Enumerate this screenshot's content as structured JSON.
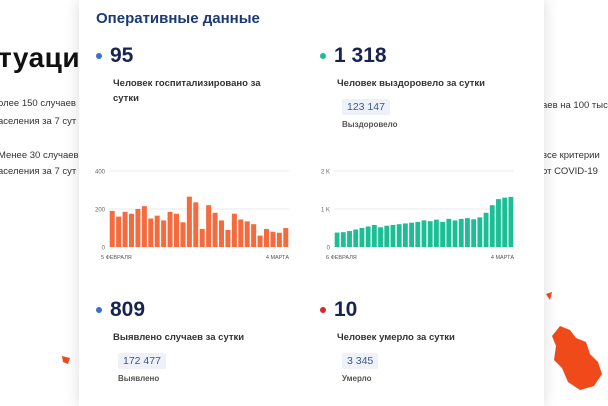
{
  "background": {
    "heading": "туаци",
    "left_lines": [
      "олее 150 случаев",
      "аселения за 7 сут",
      "Менее 30 случаев",
      "аселения за 7 сут"
    ],
    "right_lines": [
      "аев на 100 тыс.",
      "",
      "все критерии",
      "от COVID-19"
    ]
  },
  "card": {
    "title": "Оперативные данные",
    "hospitalized": {
      "value": "95",
      "label": "Человек госпитализировано за сутки",
      "color": "#3b6fd8"
    },
    "recovered": {
      "value": "1 318",
      "label": "Человек выздоровело за сутки",
      "total": "123 147",
      "total_caption": "Выздоровело",
      "color": "#1cbf95"
    },
    "detected": {
      "value": "809",
      "label": "Выявлено случаев за сутки",
      "total": "172 477",
      "total_caption": "Выявлено",
      "color": "#3b6fd8"
    },
    "deaths": {
      "value": "10",
      "label": "Человек умерло за сутки",
      "total": "3 345",
      "total_caption": "Умерло",
      "color": "#d8262e"
    }
  },
  "chart_data": [
    {
      "type": "bar",
      "series_color": "#f56b3d",
      "y_ticks": [
        "400",
        "200",
        "0"
      ],
      "ylim": [
        0,
        400
      ],
      "x_start_label": "5 ФЕВРАЛЯ",
      "x_end_label": "4 МАРТА",
      "values": [
        190,
        160,
        185,
        175,
        200,
        215,
        150,
        165,
        140,
        185,
        175,
        130,
        265,
        235,
        95,
        220,
        180,
        140,
        90,
        175,
        145,
        135,
        120,
        60,
        95,
        80,
        75,
        100
      ]
    },
    {
      "type": "bar",
      "series_color": "#1cbf95",
      "y_ticks": [
        "2 K",
        "1 K",
        "0"
      ],
      "ylim": [
        0,
        2000
      ],
      "x_start_label": "6 ФЕВРАЛЯ",
      "x_end_label": "4 МАРТА",
      "values": [
        380,
        390,
        420,
        460,
        500,
        540,
        580,
        520,
        560,
        580,
        600,
        620,
        640,
        660,
        700,
        680,
        720,
        660,
        740,
        700,
        740,
        760,
        730,
        780,
        900,
        1100,
        1260,
        1300,
        1318
      ]
    }
  ]
}
